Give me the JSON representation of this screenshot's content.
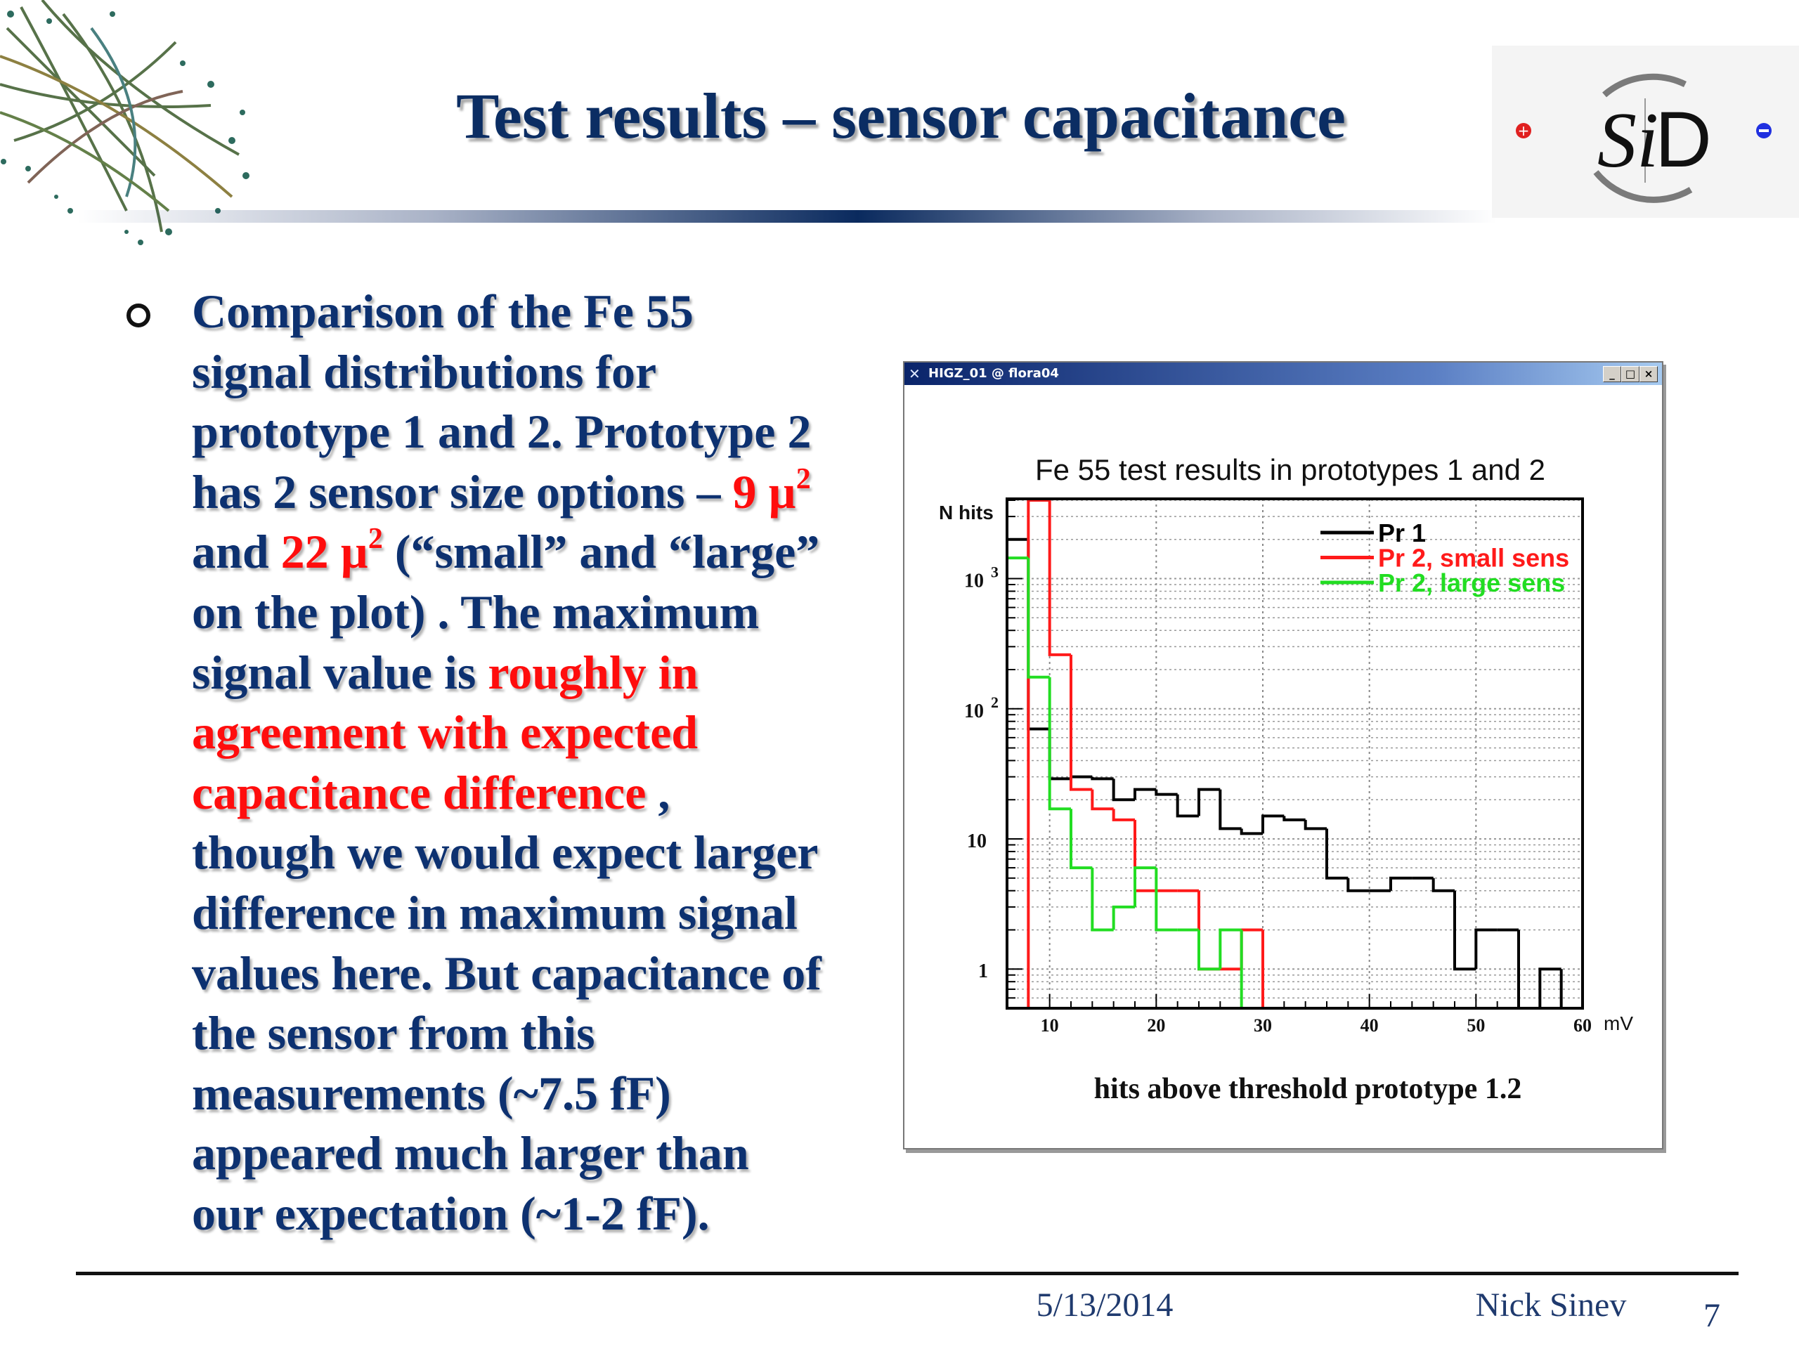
{
  "slide": {
    "title": "Test results – sensor capacitance",
    "logo_text": "SiD",
    "body": {
      "lines": [
        [
          {
            "t": "Comparison of the Fe 55"
          }
        ],
        [
          {
            "t": "signal distributions  for"
          }
        ],
        [
          {
            "t": "prototype 1 and 2. Prototype 2"
          }
        ],
        [
          {
            "t": "has 2 sensor size options – "
          },
          {
            "t": "9 µ",
            "red": true
          },
          {
            "t": "2",
            "red": true,
            "sup": true
          }
        ],
        [
          {
            "t": "and "
          },
          {
            "t": "22 µ",
            "red": true
          },
          {
            "t": "2",
            "red": true,
            "sup": true
          },
          {
            "t": " (“small” and “large”"
          }
        ],
        [
          {
            "t": "on the plot)  . The maximum"
          }
        ],
        [
          {
            "t": "signal value is "
          },
          {
            "t": "roughly in",
            "red": true
          }
        ],
        [
          {
            "t": "agreement with expected",
            "red": true
          }
        ],
        [
          {
            "t": "capacitance  difference",
            "red": true
          },
          {
            "t": "  ,"
          }
        ],
        [
          {
            "t": "though we would expect larger"
          }
        ],
        [
          {
            "t": "difference  in maximum signal"
          }
        ],
        [
          {
            "t": "values here. But capacitance of"
          }
        ],
        [
          {
            "t": "the sensor from this"
          }
        ],
        [
          {
            "t": "measurements  (~7.5 fF)"
          }
        ],
        [
          {
            "t": "appeared  much larger than"
          }
        ],
        [
          {
            "t": "our expectation  (~1-2 fF)."
          }
        ]
      ]
    },
    "footer": {
      "date": "5/13/2014",
      "author": "Nick Sinev",
      "page": "7"
    },
    "colors": {
      "text": "#0d3170",
      "highlight": "#ff0d0d",
      "title": "#0b2d63"
    }
  },
  "window": {
    "title": "HIGZ_01 @ flora04",
    "buttons": {
      "minimize": "_",
      "maximize": "□",
      "close": "×"
    }
  },
  "chart_data": {
    "type": "histogram",
    "title": "Fe 55 test results in prototypes 1 and 2",
    "xlabel": "hits above threshold prototype 1.2",
    "ylabel": "N hits",
    "x_unit": "mV",
    "xlim": [
      6,
      60
    ],
    "ylim": [
      0.5,
      4100
    ],
    "y_scale": "log",
    "grid": true,
    "legend_position": "top-right",
    "x_ticks": [
      "10",
      "20",
      "30",
      "40",
      "50",
      "60"
    ],
    "y_ticks": [
      {
        "base": "10",
        "exp": "3"
      },
      {
        "base": "10",
        "exp": "2"
      },
      {
        "base": "10",
        "exp": ""
      },
      {
        "base": "1",
        "exp": ""
      }
    ],
    "bin_edges": [
      6,
      8,
      10,
      12,
      14,
      16,
      18,
      20,
      22,
      24,
      26,
      28,
      30,
      32,
      34,
      36,
      38,
      40,
      42,
      44,
      46,
      48,
      50,
      52,
      54,
      56,
      58,
      60
    ],
    "series": [
      {
        "name": "Pr 1",
        "color": "#000000",
        "values": [
          2000,
          70,
          29,
          30,
          29,
          20,
          24,
          22,
          15,
          24,
          12,
          11,
          15,
          14,
          12,
          5,
          4,
          4,
          5,
          5,
          4,
          1,
          2,
          2,
          0,
          1,
          0
        ]
      },
      {
        "name": "Pr 2, small sens",
        "color": "#ff1a1a",
        "values": [
          0,
          4000,
          260,
          24,
          17,
          14,
          4,
          4,
          4,
          1,
          1,
          2,
          0,
          0,
          0,
          0,
          0,
          0,
          0,
          0,
          0,
          0,
          0,
          0,
          0,
          0,
          0
        ]
      },
      {
        "name": "Pr 2, large sens",
        "color": "#22dd22",
        "values": [
          1440,
          175,
          17,
          6,
          2,
          3,
          6,
          2,
          2,
          1,
          2,
          0,
          0,
          0,
          0,
          0,
          0,
          0,
          0,
          0,
          0,
          0,
          0,
          0,
          0,
          0,
          0
        ]
      }
    ]
  }
}
